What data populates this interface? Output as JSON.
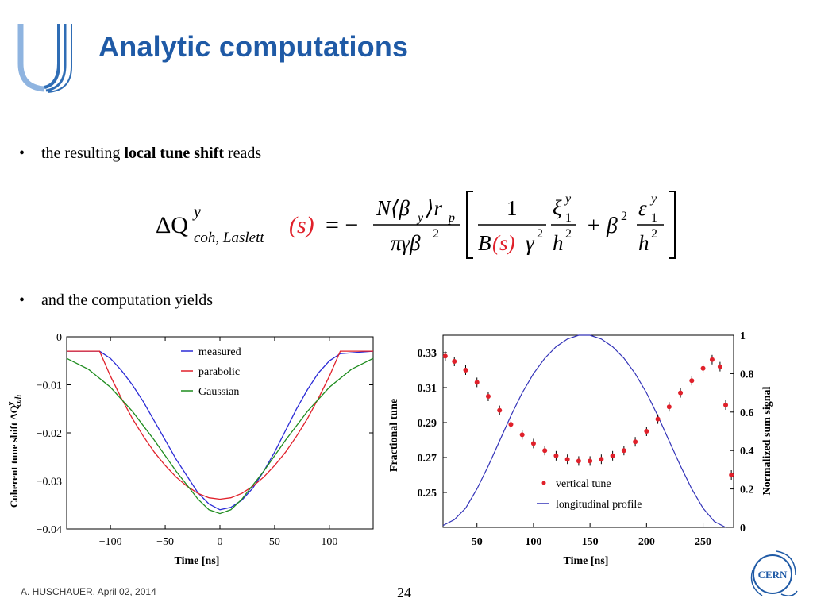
{
  "slide": {
    "title": "Analytic computations",
    "bullet1": {
      "pre": "the resulting ",
      "bold": "local tune shift",
      "post": " reads"
    },
    "bullet2": "and the computation yields",
    "footer": "A. HUSCHAUER, April 02, 2014",
    "page_number": "24",
    "cern_logo_text": "CERN"
  },
  "colors": {
    "title": "#1f5aa6",
    "measured": "#2b2bd6",
    "parabolic": "#e0202a",
    "gaussian": "#1e8c1e",
    "formula_highlight": "#e0202a"
  },
  "formula": {
    "lhs_symbol": "ΔQ",
    "lhs_sup": "y",
    "lhs_sub": "coh, Laslett",
    "lhs_arg": "(s)",
    "equals": "= −",
    "num_main": "N⟨β",
    "num_sub_y": "y",
    "num_rest": "⟩r",
    "num_sub_p": "p",
    "den_main": "πγβ",
    "den_sup": "2",
    "frac1_num": "1",
    "frac1_den_B": "B",
    "frac1_den_s": "(s)",
    "frac1_den_rest": "γ",
    "frac1_den_sup": "2",
    "xi": "ξ",
    "xi_sup": "y",
    "xi_sub": "1",
    "h": "h",
    "h_sup": "2",
    "plus": "+ β",
    "plus_sup": "2",
    "eps": "ε",
    "eps_sup": "y",
    "eps_sub": "1"
  },
  "chart_data": [
    {
      "type": "line",
      "xlabel": "Time [ns]",
      "ylabel": "Coherent tune shift ΔQ",
      "ylabel_sup": "y",
      "ylabel_sub": "coh",
      "xlim": [
        -140,
        140
      ],
      "ylim": [
        -0.04,
        0
      ],
      "x_ticks": [
        -100,
        -50,
        0,
        50,
        100
      ],
      "x_tick_labels": [
        "−100",
        "−50",
        "0",
        "50",
        "100"
      ],
      "y_ticks": [
        0,
        -0.01,
        -0.02,
        -0.03,
        -0.04
      ],
      "y_tick_labels": [
        "0",
        "−0.01",
        "−0.02",
        "−0.03",
        "−0.04"
      ],
      "legend_position": "top-right",
      "series": [
        {
          "name": "measured",
          "color": "#2b2bd6",
          "x": [
            -140,
            -110,
            -100,
            -90,
            -80,
            -70,
            -60,
            -50,
            -40,
            -30,
            -20,
            -10,
            0,
            10,
            20,
            30,
            40,
            50,
            60,
            70,
            80,
            90,
            100,
            110,
            140
          ],
          "y": [
            -0.003,
            -0.003,
            -0.0045,
            -0.007,
            -0.01,
            -0.0135,
            -0.0175,
            -0.0215,
            -0.0255,
            -0.029,
            -0.0325,
            -0.0348,
            -0.036,
            -0.0355,
            -0.034,
            -0.0315,
            -0.028,
            -0.024,
            -0.0195,
            -0.015,
            -0.011,
            -0.0075,
            -0.005,
            -0.0035,
            -0.003
          ]
        },
        {
          "name": "parabolic",
          "color": "#e0202a",
          "x": [
            -140,
            -110,
            -100,
            -90,
            -80,
            -70,
            -60,
            -50,
            -40,
            -30,
            -20,
            -10,
            0,
            10,
            20,
            30,
            40,
            50,
            60,
            70,
            80,
            90,
            100,
            110,
            140
          ],
          "y": [
            -0.003,
            -0.003,
            -0.0082,
            -0.0128,
            -0.017,
            -0.0207,
            -0.024,
            -0.0268,
            -0.0292,
            -0.0311,
            -0.0326,
            -0.0335,
            -0.0338,
            -0.0335,
            -0.0326,
            -0.0311,
            -0.0292,
            -0.0268,
            -0.024,
            -0.0207,
            -0.017,
            -0.0128,
            -0.0082,
            -0.003,
            -0.003
          ]
        },
        {
          "name": "Gaussian",
          "color": "#1e8c1e",
          "x": [
            -140,
            -120,
            -100,
            -80,
            -60,
            -40,
            -20,
            -10,
            0,
            10,
            20,
            40,
            60,
            80,
            100,
            120,
            140
          ],
          "y": [
            -0.0045,
            -0.0068,
            -0.0105,
            -0.0155,
            -0.0215,
            -0.028,
            -0.0338,
            -0.036,
            -0.0368,
            -0.036,
            -0.0338,
            -0.028,
            -0.0215,
            -0.0155,
            -0.0105,
            -0.0068,
            -0.0045
          ]
        }
      ]
    },
    {
      "type": "scatter",
      "xlabel": "Time [ns]",
      "ylabel": "Fractional tune",
      "y2label": "Normalized sum signal",
      "xlim": [
        20,
        277
      ],
      "ylim": [
        0.23,
        0.34
      ],
      "y2lim": [
        0,
        1
      ],
      "x_ticks": [
        50,
        100,
        150,
        200,
        250
      ],
      "x_tick_labels": [
        "50",
        "100",
        "150",
        "200",
        "250"
      ],
      "y_ticks": [
        0.25,
        0.27,
        0.29,
        0.31,
        0.33
      ],
      "y_tick_labels": [
        "0.25",
        "0.27",
        "0.29",
        "0.31",
        "0.33"
      ],
      "y2_ticks": [
        0,
        0.2,
        0.4,
        0.6,
        0.8,
        1
      ],
      "y2_tick_labels": [
        "0",
        "0.2",
        "0.4",
        "0.6",
        "0.8",
        "1"
      ],
      "legend_position": "bottom-center",
      "series": [
        {
          "name": "vertical tune",
          "color": "#e0202a",
          "axis": "left",
          "x": [
            22,
            30,
            40,
            50,
            60,
            70,
            80,
            90,
            100,
            110,
            120,
            130,
            140,
            150,
            160,
            170,
            180,
            190,
            200,
            210,
            220,
            230,
            240,
            250,
            258,
            265,
            270,
            275
          ],
          "y": [
            0.328,
            0.325,
            0.32,
            0.313,
            0.305,
            0.297,
            0.289,
            0.283,
            0.278,
            0.274,
            0.271,
            0.269,
            0.268,
            0.268,
            0.269,
            0.271,
            0.274,
            0.279,
            0.285,
            0.292,
            0.299,
            0.307,
            0.314,
            0.321,
            0.326,
            0.322,
            0.3,
            0.26
          ]
        },
        {
          "name": "longitudinal profile",
          "color": "#3333b8",
          "axis": "right",
          "x": [
            20,
            30,
            40,
            50,
            60,
            70,
            80,
            90,
            100,
            110,
            120,
            130,
            140,
            145,
            150,
            160,
            170,
            180,
            190,
            200,
            210,
            220,
            230,
            240,
            250,
            260,
            270
          ],
          "y": [
            0.01,
            0.04,
            0.1,
            0.2,
            0.32,
            0.45,
            0.58,
            0.7,
            0.8,
            0.88,
            0.94,
            0.98,
            1.0,
            1.0,
            1.0,
            0.98,
            0.94,
            0.88,
            0.8,
            0.7,
            0.58,
            0.45,
            0.32,
            0.2,
            0.1,
            0.03,
            0.0
          ]
        }
      ]
    }
  ]
}
